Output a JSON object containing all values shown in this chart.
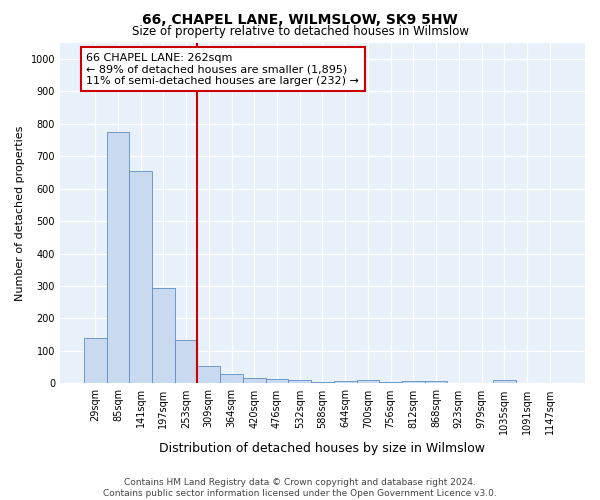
{
  "title": "66, CHAPEL LANE, WILMSLOW, SK9 5HW",
  "subtitle": "Size of property relative to detached houses in Wilmslow",
  "xlabel": "Distribution of detached houses by size in Wilmslow",
  "ylabel": "Number of detached properties",
  "bar_labels": [
    "29sqm",
    "85sqm",
    "141sqm",
    "197sqm",
    "253sqm",
    "309sqm",
    "364sqm",
    "420sqm",
    "476sqm",
    "532sqm",
    "588sqm",
    "644sqm",
    "700sqm",
    "756sqm",
    "812sqm",
    "868sqm",
    "923sqm",
    "979sqm",
    "1035sqm",
    "1091sqm",
    "1147sqm"
  ],
  "bar_values": [
    140,
    775,
    655,
    295,
    135,
    55,
    30,
    18,
    15,
    10,
    5,
    8,
    10,
    5,
    7,
    8,
    0,
    0,
    10,
    0,
    0
  ],
  "bar_color": "#c8d9f0",
  "bar_edge_color": "#5b8ec4",
  "property_line_x": 4.5,
  "property_line_color": "#cc0000",
  "annotation_line1": "66 CHAPEL LANE: 262sqm",
  "annotation_line2": "← 89% of detached houses are smaller (1,895)",
  "annotation_line3": "11% of semi-detached houses are larger (232) →",
  "annotation_box_color": "#cc0000",
  "ylim": [
    0,
    1050
  ],
  "yticks": [
    0,
    100,
    200,
    300,
    400,
    500,
    600,
    700,
    800,
    900,
    1000
  ],
  "footer_line1": "Contains HM Land Registry data © Crown copyright and database right 2024.",
  "footer_line2": "Contains public sector information licensed under the Open Government Licence v3.0.",
  "fig_bg_color": "#ffffff",
  "ax_bg_color": "#e8f0fa",
  "grid_color": "#ffffff",
  "title_fontsize": 10,
  "subtitle_fontsize": 8.5,
  "xlabel_fontsize": 9,
  "ylabel_fontsize": 8,
  "tick_fontsize": 7,
  "annotation_fontsize": 8,
  "footer_fontsize": 6.5
}
